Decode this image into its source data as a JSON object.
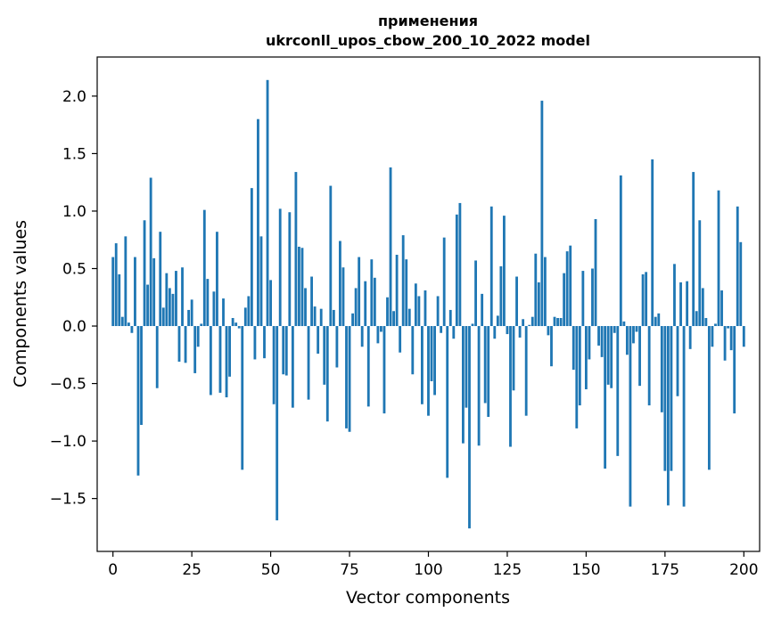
{
  "chart_data": {
    "type": "bar",
    "title_line1": "применения",
    "title_line2": "ukrconll_upos_cbow_200_10_2022 model",
    "xlabel": "Vector components",
    "ylabel": "Components values",
    "xlim": [
      -5,
      205
    ],
    "ylim": [
      -1.96,
      2.34
    ],
    "x_ticks": [
      0,
      25,
      50,
      75,
      100,
      125,
      150,
      175,
      200
    ],
    "y_ticks": [
      -1.5,
      -1.0,
      -0.5,
      0.0,
      0.5,
      1.0,
      1.5,
      2.0
    ],
    "y_tick_labels": [
      "−1.5",
      "−1.0",
      "−0.5",
      "0.0",
      "0.5",
      "1.0",
      "1.5",
      "2.0"
    ],
    "bar_color": "#1f77b4",
    "values": [
      0.6,
      0.72,
      0.45,
      0.08,
      0.78,
      0.03,
      -0.06,
      0.6,
      -1.3,
      -0.86,
      0.92,
      0.36,
      1.29,
      0.59,
      -0.54,
      0.82,
      0.16,
      0.46,
      0.33,
      0.28,
      0.48,
      -0.31,
      0.51,
      -0.32,
      0.14,
      0.23,
      -0.41,
      -0.18,
      0.02,
      1.01,
      0.41,
      -0.6,
      0.3,
      0.82,
      -0.58,
      0.24,
      -0.62,
      -0.44,
      0.07,
      0.03,
      -0.02,
      -1.25,
      0.16,
      0.26,
      1.2,
      -0.29,
      1.8,
      0.78,
      -0.28,
      2.14,
      0.4,
      -0.68,
      -1.69,
      1.02,
      -0.42,
      -0.43,
      0.99,
      -0.71,
      1.34,
      0.69,
      0.68,
      0.33,
      -0.64,
      0.43,
      0.17,
      -0.24,
      0.15,
      -0.51,
      -0.83,
      1.22,
      0.14,
      -0.36,
      0.74,
      0.51,
      -0.89,
      -0.92,
      0.11,
      0.33,
      0.6,
      -0.18,
      0.39,
      -0.7,
      0.58,
      0.42,
      -0.15,
      -0.05,
      -0.76,
      0.25,
      1.38,
      0.13,
      0.62,
      -0.23,
      0.79,
      0.58,
      0.15,
      -0.42,
      0.37,
      0.26,
      -0.68,
      0.31,
      -0.78,
      -0.48,
      -0.6,
      0.26,
      -0.06,
      0.77,
      -1.32,
      0.14,
      -0.11,
      0.97,
      1.07,
      -1.02,
      -0.71,
      -1.76,
      0.02,
      0.57,
      -1.04,
      0.28,
      -0.67,
      -0.79,
      1.04,
      -0.11,
      0.09,
      0.52,
      0.96,
      -0.07,
      -1.05,
      -0.56,
      0.43,
      -0.1,
      0.06,
      -0.78,
      0.01,
      0.08,
      0.63,
      0.38,
      1.96,
      0.6,
      -0.08,
      -0.35,
      0.08,
      0.07,
      0.07,
      0.46,
      0.65,
      0.7,
      -0.38,
      -0.89,
      -0.69,
      0.48,
      -0.55,
      -0.29,
      0.5,
      0.93,
      -0.17,
      -0.27,
      -1.24,
      -0.51,
      -0.54,
      -0.06,
      -1.13,
      1.31,
      0.04,
      -0.25,
      -1.57,
      -0.15,
      -0.05,
      -0.52,
      0.45,
      0.47,
      -0.69,
      1.45,
      0.08,
      0.11,
      -0.75,
      -1.26,
      -1.56,
      -1.26,
      0.54,
      -0.61,
      0.38,
      -1.57,
      0.39,
      -0.2,
      1.34,
      0.13,
      0.92,
      0.33,
      0.07,
      -1.25,
      -0.18,
      0.02,
      1.18,
      0.31,
      -0.3,
      -0.02,
      -0.21,
      -0.76,
      1.04,
      0.73,
      -0.18
    ]
  }
}
